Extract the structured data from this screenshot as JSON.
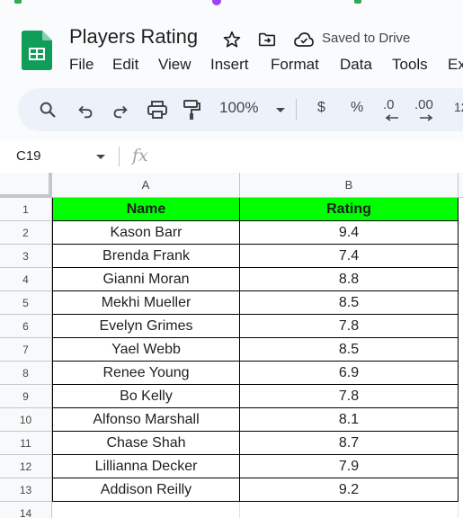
{
  "document": {
    "title": "Players Rating",
    "save_status": "Saved to Drive"
  },
  "menu": [
    "File",
    "Edit",
    "View",
    "Insert",
    "Format",
    "Data",
    "Tools",
    "Ex"
  ],
  "toolbar": {
    "zoom": "100%",
    "currency": "$",
    "percent": "%",
    "decrease_decimal": ".0",
    "increase_decimal": ".00",
    "more_formats": "12"
  },
  "formula_bar": {
    "cell_ref": "C19",
    "fx": "fx",
    "formula": ""
  },
  "sheet": {
    "columns": [
      "A",
      "B"
    ],
    "header": {
      "row": "1",
      "name": "Name",
      "rating": "Rating"
    },
    "rows": [
      {
        "row": "2",
        "name": "Kason Barr",
        "rating": "9.4"
      },
      {
        "row": "3",
        "name": "Brenda Frank",
        "rating": "7.4"
      },
      {
        "row": "4",
        "name": "Gianni Moran",
        "rating": "8.8"
      },
      {
        "row": "5",
        "name": "Mekhi Mueller",
        "rating": "8.5"
      },
      {
        "row": "6",
        "name": "Evelyn Grimes",
        "rating": "7.8"
      },
      {
        "row": "7",
        "name": "Yael Webb",
        "rating": "8.5"
      },
      {
        "row": "8",
        "name": "Renee Young",
        "rating": "6.9"
      },
      {
        "row": "9",
        "name": "Bo Kelly",
        "rating": "7.8"
      },
      {
        "row": "10",
        "name": "Alfonso Marshall",
        "rating": "8.1"
      },
      {
        "row": "11",
        "name": "Chase Shah",
        "rating": "8.7"
      },
      {
        "row": "12",
        "name": "Lillianna Decker",
        "rating": "7.9"
      },
      {
        "row": "13",
        "name": "Addison Reilly",
        "rating": "9.2"
      }
    ],
    "empty_row": "14"
  },
  "colors": {
    "header_fill": "#00ff00",
    "sheets_green": "#0f9d58",
    "toolbar_bg": "#edf2fa",
    "chrome_bg": "#f9fbfd"
  }
}
